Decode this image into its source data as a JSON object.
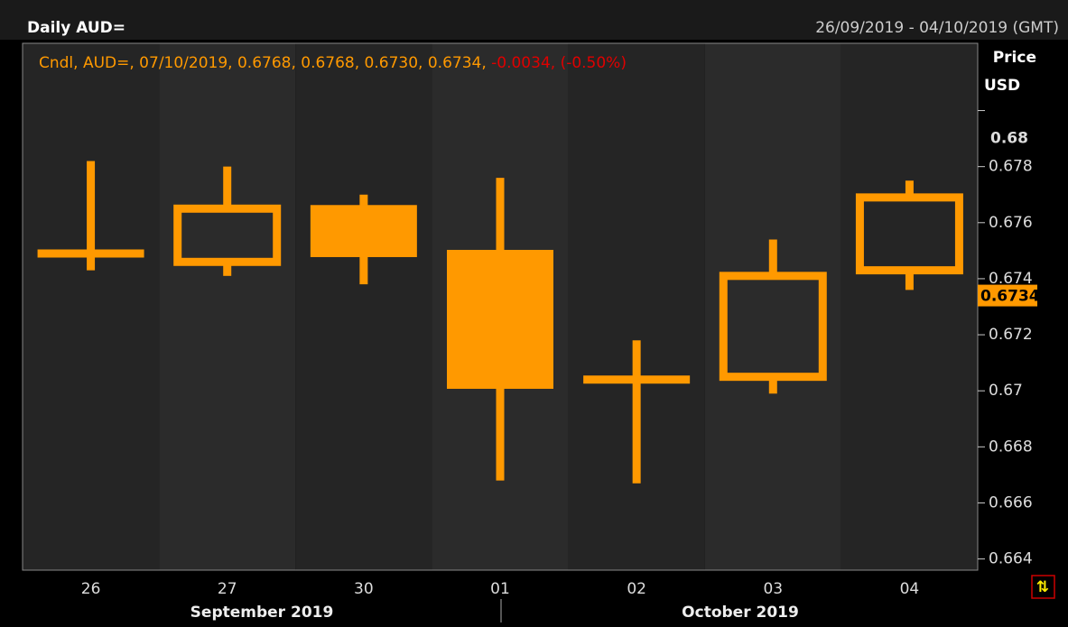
{
  "chart_data": {
    "type": "candlestick",
    "title": "Daily AUD=",
    "date_range": "26/09/2019 - 04/10/2019 (GMT)",
    "info_line": "Cndl, AUD=, 07/10/2019, 0.6768, 0.6768, 0.6730, 0.6734, ",
    "change_text": "-0.0034, (-0.50%)",
    "axis_label": [
      "Price",
      "USD"
    ],
    "categories": [
      "26",
      "27",
      "30",
      "01",
      "02",
      "03",
      "04"
    ],
    "month_labels": [
      "September 2019",
      "October 2019"
    ],
    "open": [
      0.6749,
      0.6746,
      0.6765,
      0.6749,
      0.6704,
      0.6705,
      0.6743
    ],
    "high": [
      0.6782,
      0.678,
      0.677,
      0.6776,
      0.6718,
      0.6754,
      0.6775
    ],
    "low": [
      0.6743,
      0.6741,
      0.6738,
      0.6668,
      0.6667,
      0.6699,
      0.6736
    ],
    "close": [
      0.6749,
      0.6765,
      0.6749,
      0.6702,
      0.6704,
      0.6741,
      0.6769
    ],
    "color": "#ff9900",
    "last_price": 0.6734,
    "ylim": [
      0.6636,
      0.6824
    ],
    "yticks": [
      0.664,
      0.666,
      0.668,
      0.67,
      0.672,
      0.674,
      0.676,
      0.678,
      0.68
    ]
  }
}
